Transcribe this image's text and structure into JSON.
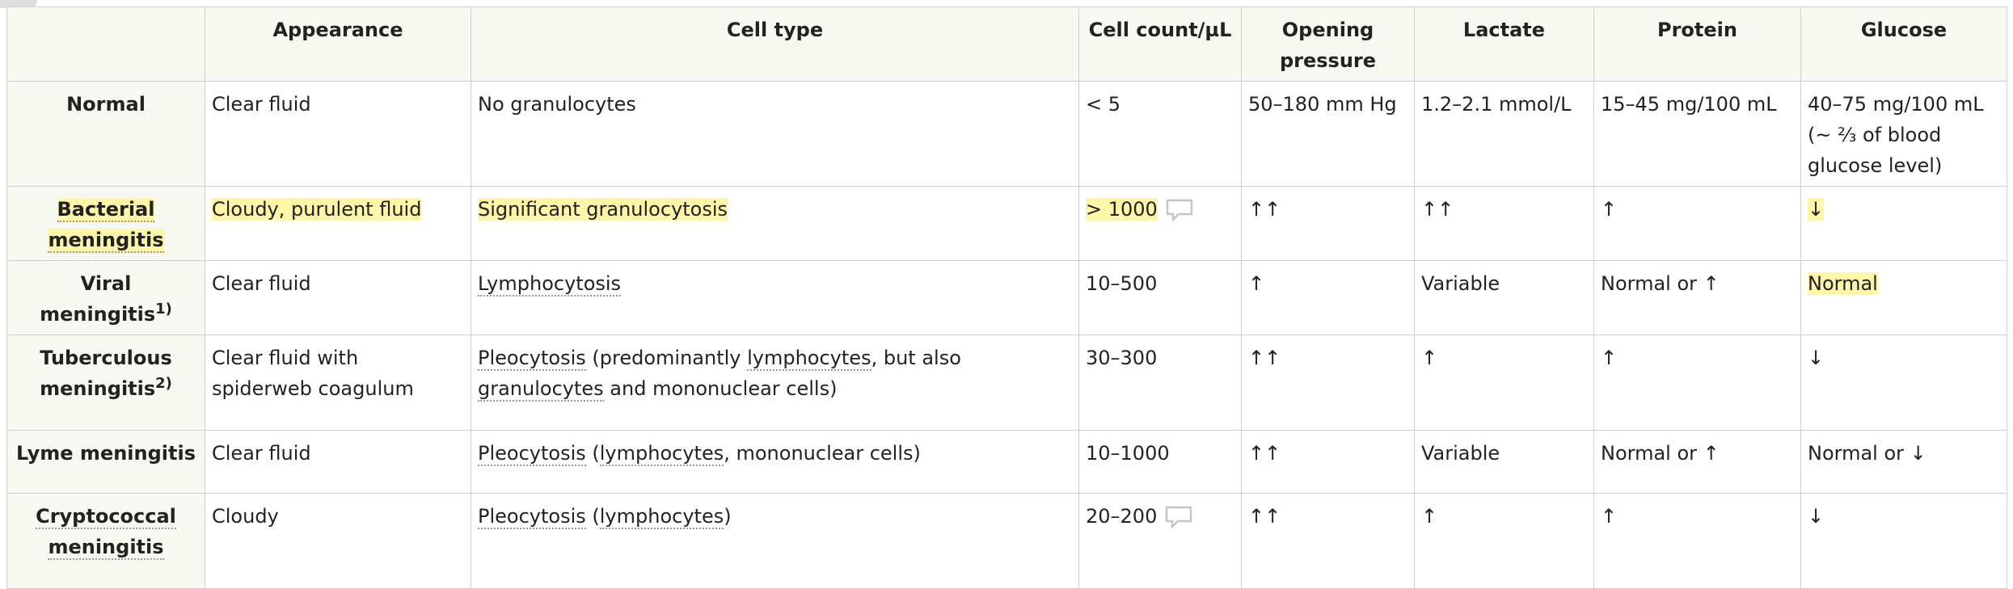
{
  "table": {
    "headers": [
      "",
      "Appearance",
      "Cell type",
      "Cell count/µL",
      "Opening pressure",
      "Lactate",
      "Protein",
      "Glucose"
    ],
    "rows": [
      {
        "condition": "Normal",
        "appearance": "Clear fluid",
        "cell_type": "No granulocytes",
        "cell_count": "< 5",
        "opening_pressure": "50–180 mm Hg",
        "lactate": "1.2–2.1 mmol/L",
        "protein": "15–45 mg/100 mL",
        "glucose": "40–75 mg/100 mL (~ ⅔ of blood glucose level)"
      },
      {
        "condition": "Bacterial meningitis",
        "appearance": "Cloudy, purulent fluid",
        "cell_type": "Significant granulocytosis",
        "cell_count": "> 1000",
        "opening_pressure": "↑↑",
        "lactate": "↑↑",
        "protein": "↑",
        "glucose": "↓"
      },
      {
        "condition": "Viral meningitis",
        "condition_sup": "1)",
        "appearance": "Clear fluid",
        "cell_type": "Lymphocytosis",
        "cell_count": "10–500",
        "opening_pressure": "↑",
        "lactate": "Variable",
        "protein": "Normal or ↑",
        "glucose": "Normal"
      },
      {
        "condition": "Tuberculous meningitis",
        "condition_sup": "2)",
        "appearance": "Clear fluid with spiderweb coagulum",
        "cell_type_parts": [
          "Pleocytosis",
          " (predominantly ",
          "lymphocytes",
          ", but also ",
          "granulocytes",
          " and mononuclear cells)"
        ],
        "cell_count": "30–300",
        "opening_pressure": "↑↑",
        "lactate": "↑",
        "protein": "↑",
        "glucose": "↓"
      },
      {
        "condition": "Lyme meningitis",
        "appearance": "Clear fluid",
        "cell_type_parts": [
          "Pleocytosis",
          " (",
          "lymphocytes",
          ", mononuclear cells)"
        ],
        "cell_count": "10–1000",
        "opening_pressure": "↑↑",
        "lactate": "Variable",
        "protein": "Normal or ↑",
        "glucose": "Normal or ↓"
      },
      {
        "condition": "Cryptococcal meningitis",
        "appearance": "Cloudy",
        "cell_type_parts": [
          "Pleocytosis",
          " (",
          "lymphocytes",
          ")"
        ],
        "cell_count": "20–200",
        "opening_pressure": "↑↑",
        "lactate": "↑",
        "protein": "↑",
        "glucose": "↓"
      }
    ],
    "icons": {
      "comment": "speech-bubble-icon"
    },
    "colors": {
      "highlight": "#fdf6a8",
      "header_bg": "#f8f8f3",
      "border": "#cfcfcf"
    }
  }
}
